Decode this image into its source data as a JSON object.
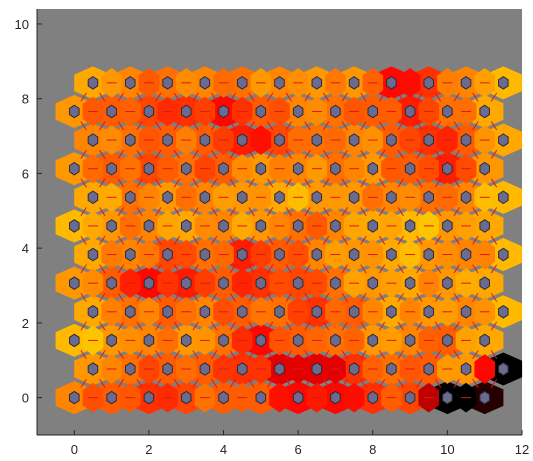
{
  "chart_data": {
    "type": "heatmap",
    "description_note": "",
    "xlim": [
      -1,
      12
    ],
    "ylim": [
      -1,
      10.4
    ],
    "xticks": [
      0,
      2,
      4,
      6,
      8,
      10,
      12
    ],
    "yticks": [
      0,
      2,
      4,
      6,
      8,
      10
    ],
    "xtick_labels": [
      "0",
      "2",
      "4",
      "6",
      "8",
      "10",
      "12"
    ],
    "ytick_labels": [
      "0",
      "2",
      "4",
      "6",
      "8",
      "10"
    ],
    "grid": false,
    "background_color": "#808080",
    "neuron_color": "#6b6b8f",
    "link_color": "#d81b1b",
    "colormap": [
      "#000000",
      "#ff0000",
      "#ff8c00",
      "#ffff00"
    ],
    "layout": "hexagonal",
    "grid_size": {
      "cols": 12,
      "rows": 12
    },
    "rows": [
      [
        0.65,
        0.55,
        0.45,
        0.5,
        0.55,
        0.55,
        0.35,
        0.35,
        0.45,
        0.5,
        0.0,
        0.05
      ],
      [
        0.7,
        0.6,
        0.55,
        0.55,
        0.45,
        0.3,
        0.3,
        0.45,
        0.6,
        0.55,
        0.7,
        0.0
      ],
      [
        0.8,
        0.7,
        0.65,
        0.7,
        0.6,
        0.35,
        0.55,
        0.6,
        0.7,
        0.65,
        0.55,
        0.75
      ],
      [
        0.75,
        0.6,
        0.55,
        0.65,
        0.55,
        0.6,
        0.45,
        0.55,
        0.75,
        0.7,
        0.65,
        0.8
      ],
      [
        0.7,
        0.55,
        0.35,
        0.4,
        0.55,
        0.45,
        0.5,
        0.6,
        0.7,
        0.75,
        0.7,
        0.75
      ],
      [
        0.75,
        0.65,
        0.5,
        0.6,
        0.4,
        0.55,
        0.65,
        0.7,
        0.75,
        0.7,
        0.65,
        0.8
      ],
      [
        0.8,
        0.7,
        0.65,
        0.75,
        0.65,
        0.7,
        0.6,
        0.65,
        0.75,
        0.8,
        0.7,
        0.75
      ],
      [
        0.75,
        0.6,
        0.7,
        0.65,
        0.7,
        0.75,
        0.7,
        0.7,
        0.65,
        0.6,
        0.65,
        0.8
      ],
      [
        0.7,
        0.55,
        0.5,
        0.6,
        0.55,
        0.7,
        0.65,
        0.6,
        0.7,
        0.55,
        0.4,
        0.7
      ],
      [
        0.65,
        0.6,
        0.55,
        0.55,
        0.4,
        0.5,
        0.6,
        0.65,
        0.55,
        0.45,
        0.55,
        0.75
      ],
      [
        0.7,
        0.55,
        0.5,
        0.45,
        0.35,
        0.55,
        0.65,
        0.6,
        0.55,
        0.4,
        0.6,
        0.75
      ],
      [
        0.75,
        0.65,
        0.6,
        0.65,
        0.6,
        0.65,
        0.7,
        0.7,
        0.35,
        0.45,
        0.65,
        0.8
      ]
    ]
  }
}
